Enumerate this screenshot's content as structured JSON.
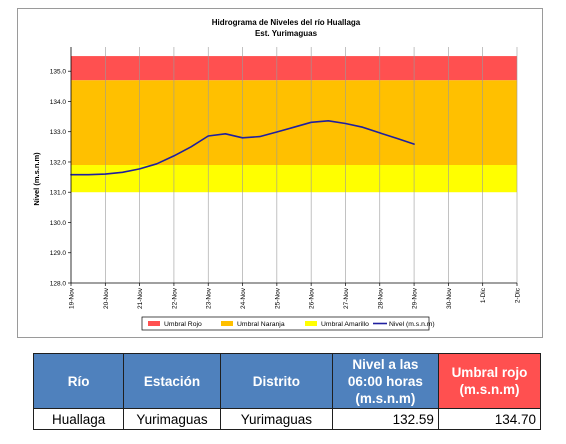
{
  "chart_data": {
    "type": "line",
    "title": "Hidrograma de Niveles del río Huallaga",
    "subtitle": "Est. Yurimaguas",
    "ylabel": "Nivel (m.s.n.m)",
    "xlabel": "",
    "ylim": [
      128.0,
      135.0
    ],
    "yticks": [
      "128.0",
      "129.0",
      "130.0",
      "131.0",
      "132.0",
      "133.0",
      "134.0",
      "135.0"
    ],
    "categories": [
      "19-Nov",
      "20-Nov",
      "21-Nov",
      "22-Nov",
      "23-Nov",
      "24-Nov",
      "25-Nov",
      "26-Nov",
      "27-Nov",
      "28-Nov",
      "29-Nov",
      "30-Nov",
      "1-Dic",
      "2-Dic"
    ],
    "grid": true,
    "legend_position": "bottom",
    "bands": [
      {
        "name": "Umbral Rojo",
        "from": 134.7,
        "to": 135.5,
        "color": "#ff5050"
      },
      {
        "name": "Umbral Naranja",
        "from": 131.9,
        "to": 134.7,
        "color": "#ffc000"
      },
      {
        "name": "Umbral Amarillo",
        "from": 131.0,
        "to": 131.9,
        "color": "#ffff00"
      }
    ],
    "series": [
      {
        "name": "Nivel (m.s.n.m)",
        "color": "#1f1f9f",
        "x": [
          0,
          0.5,
          1,
          1.5,
          2,
          2.5,
          3,
          3.5,
          4,
          4.5,
          5,
          5.5,
          6,
          6.5,
          7,
          7.5,
          8,
          8.5,
          9,
          9.5,
          10
        ],
        "values": [
          131.58,
          131.58,
          131.6,
          131.66,
          131.77,
          131.94,
          132.2,
          132.5,
          132.86,
          132.93,
          132.8,
          132.84,
          132.99,
          133.15,
          133.31,
          133.36,
          133.27,
          133.15,
          132.96,
          132.78,
          132.59
        ]
      }
    ]
  },
  "table": {
    "headers": [
      "Río",
      "Estación",
      "Distrito",
      "Nivel a las 06:00 horas (m.s.n.m)",
      "Umbral rojo (m.s.n.m)"
    ],
    "row": [
      "Huallaga",
      "Yurimaguas",
      "Yurimaguas",
      "132.59",
      "134.70"
    ]
  }
}
